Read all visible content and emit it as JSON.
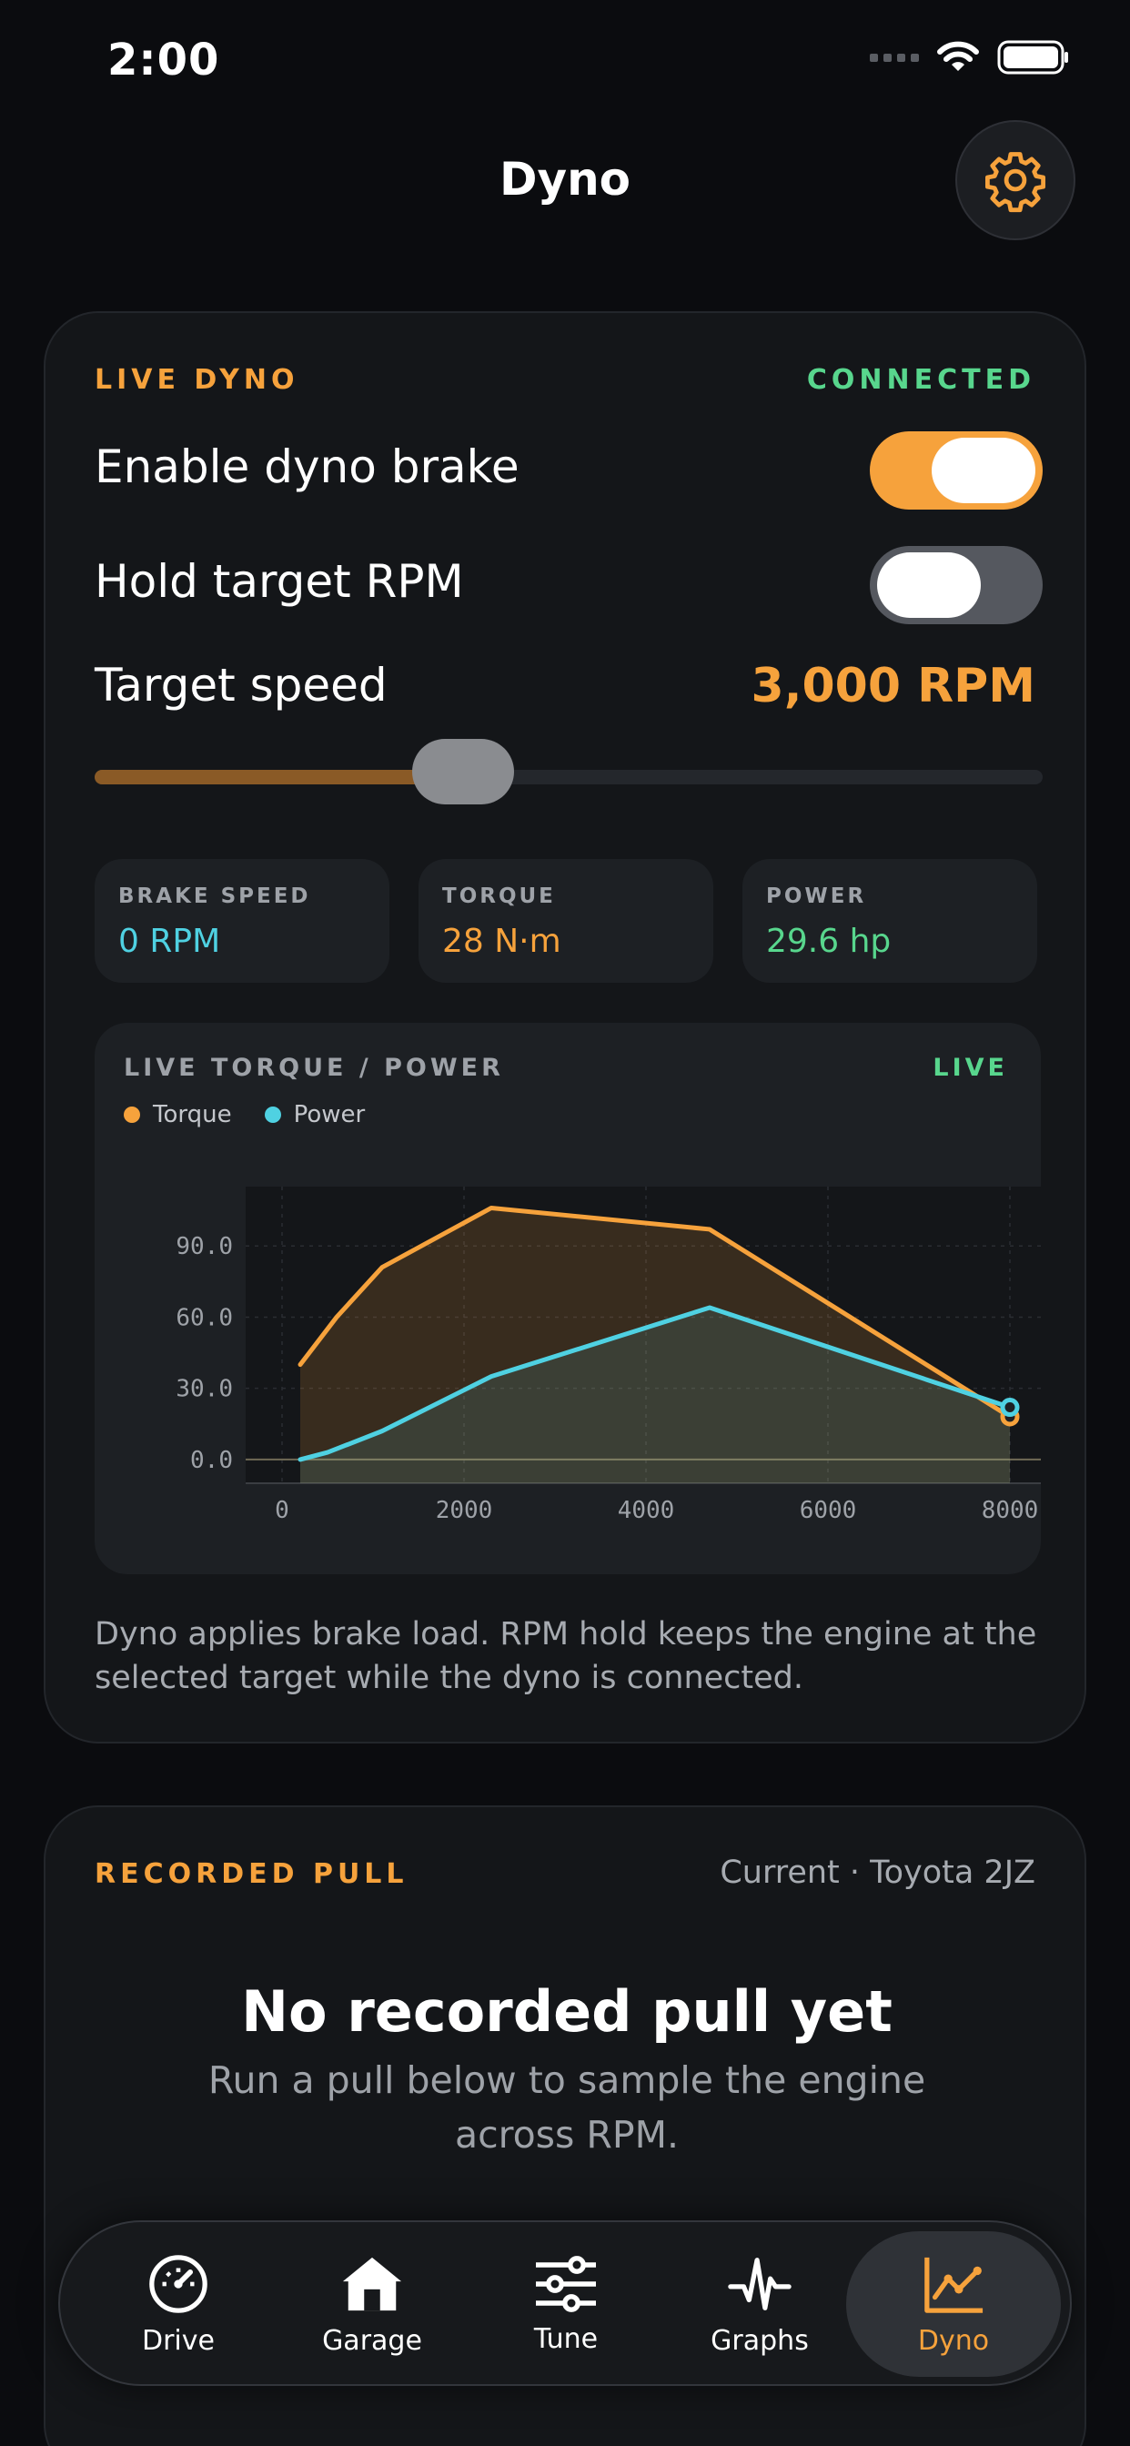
{
  "status": {
    "time": "2:00"
  },
  "header": {
    "title": "Dyno"
  },
  "live": {
    "label": "LIVE DYNO",
    "status": "CONNECTED",
    "enable_brake_label": "Enable dyno brake",
    "enable_brake_on": true,
    "hold_rpm_label": "Hold target RPM",
    "hold_rpm_on": false,
    "target_speed_label": "Target speed",
    "target_speed_value": "3,000 RPM",
    "target_speed_fraction": 0.375,
    "stats": [
      {
        "label": "BRAKE SPEED",
        "value": "0 RPM",
        "color": "#4fd1e2"
      },
      {
        "label": "TORQUE",
        "value": "28 N·m",
        "color": "#f6a23c"
      },
      {
        "label": "POWER",
        "value": "29.6 hp",
        "color": "#58d68d"
      }
    ],
    "note": "Dyno applies brake load. RPM hold keeps the engine at the selected target while the dyno is connected."
  },
  "chart": {
    "title": "LIVE TORQUE / POWER",
    "live_label": "LIVE",
    "legend": [
      {
        "name": "Torque",
        "color": "#f6a23c"
      },
      {
        "name": "Power",
        "color": "#4fd1e2"
      }
    ]
  },
  "chart_data": {
    "type": "line",
    "xlabel": "",
    "ylabel": "",
    "xlim": [
      -400,
      8700
    ],
    "ylim": [
      -10,
      115
    ],
    "x_ticks": [
      0,
      2000,
      4000,
      6000,
      8000
    ],
    "x_tick_labels": [
      "0",
      "2000",
      "4000",
      "6000",
      "8000"
    ],
    "y_ticks": [
      0,
      30,
      60,
      90
    ],
    "y_tick_labels": [
      "0.0",
      "30.0",
      "60.0",
      "90.0"
    ],
    "grid": true,
    "legend_position": "top-left",
    "series": [
      {
        "name": "Torque",
        "color": "#f6a23c",
        "x": [
          200,
          600,
          1100,
          2300,
          4700,
          8000
        ],
        "y": [
          40,
          60,
          81,
          106,
          97,
          18
        ]
      },
      {
        "name": "Power",
        "color": "#4fd1e2",
        "x": [
          200,
          500,
          1100,
          2300,
          4700,
          8000
        ],
        "y": [
          0,
          3,
          12,
          35,
          64,
          22
        ]
      }
    ]
  },
  "recorded": {
    "label": "RECORDED PULL",
    "current": "Current · Toyota 2JZ",
    "empty_title": "No recorded pull yet",
    "empty_sub": "Run a pull below to sample the engine across RPM."
  },
  "tabs": [
    {
      "label": "Drive",
      "icon": "speedometer-icon",
      "active": false
    },
    {
      "label": "Garage",
      "icon": "garage-icon",
      "active": false
    },
    {
      "label": "Tune",
      "icon": "sliders-icon",
      "active": false
    },
    {
      "label": "Graphs",
      "icon": "pulse-icon",
      "active": false
    },
    {
      "label": "Dyno",
      "icon": "chart-line-icon",
      "active": true
    }
  ]
}
